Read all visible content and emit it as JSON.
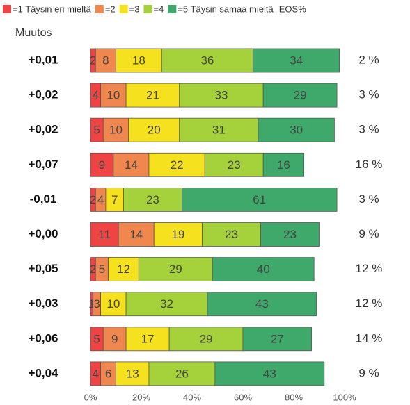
{
  "chart_data": {
    "type": "stacked_barh",
    "category_title": "Muutos",
    "categories": [
      "+0,01",
      "+0,02",
      "+0,02",
      "+0,07",
      "-0,01",
      "+0,00",
      "+0,05",
      "+0,03",
      "+0,06",
      "+0,04"
    ],
    "series": [
      {
        "name": "=1 Täysin eri mieltä",
        "color": "#f04444",
        "values": [
          2,
          4,
          5,
          9,
          2,
          11,
          2,
          1,
          5,
          4
        ]
      },
      {
        "name": "=2",
        "color": "#f0874f",
        "values": [
          8,
          10,
          10,
          14,
          4,
          14,
          5,
          3,
          9,
          6
        ]
      },
      {
        "name": "=3",
        "color": "#f6e11e",
        "values": [
          18,
          21,
          20,
          22,
          7,
          19,
          12,
          10,
          17,
          13
        ]
      },
      {
        "name": "=4",
        "color": "#a5d13b",
        "values": [
          36,
          33,
          31,
          23,
          23,
          23,
          29,
          32,
          29,
          26
        ]
      },
      {
        "name": "=5 Täysin samaa mieltä",
        "color": "#3ea96a",
        "values": [
          34,
          29,
          30,
          16,
          61,
          23,
          40,
          43,
          27,
          43
        ]
      }
    ],
    "eos": {
      "title": "EOS%",
      "values": [
        2,
        3,
        3,
        16,
        3,
        9,
        12,
        12,
        14,
        9
      ],
      "value_labels": [
        "2 %",
        "3 %",
        "3 %",
        "16 %",
        "3 %",
        "9 %",
        "12 %",
        "12 %",
        "14 %",
        "9 %"
      ]
    },
    "xlim": [
      0,
      100
    ],
    "xticks": [
      {
        "value": 0,
        "label": "0%"
      },
      {
        "value": 20,
        "label": "20%"
      },
      {
        "value": 40,
        "label": "40%"
      },
      {
        "value": 60,
        "label": "60%"
      },
      {
        "value": 80,
        "label": "80%"
      },
      {
        "value": 100,
        "label": "100%"
      }
    ],
    "grid": false,
    "legend": "top"
  }
}
